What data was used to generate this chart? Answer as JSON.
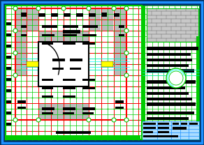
{
  "bg_color": "#003366",
  "drawing_bg": "#ffffff",
  "border_color": "#1e90ff",
  "grid_green": "#00cc00",
  "grid_red": "#ff0000",
  "grid_cyan": "#00ffff",
  "yellow": "#ffff00",
  "black": "#000000",
  "gray_light": "#aaaaaa",
  "gray_dark": "#555555",
  "white": "#ffffff",
  "brick_gray": "#888888",
  "title_blue": "#aaddff",
  "figsize": [
    2.92,
    2.08
  ],
  "dpi": 100
}
